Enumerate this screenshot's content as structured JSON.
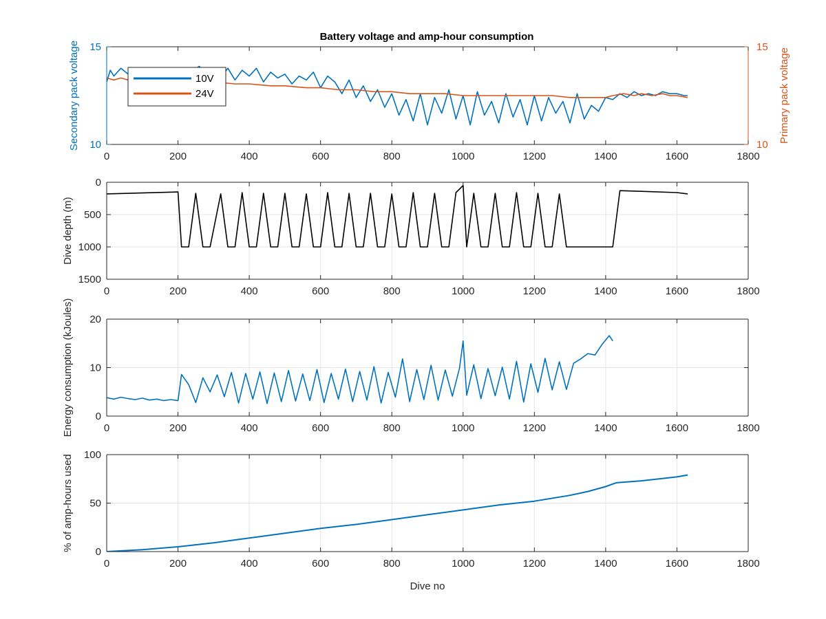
{
  "figure": {
    "title": "Battery voltage and amp-hour consumption",
    "xlabel": "Dive no"
  },
  "colors": {
    "blue": "#0072BD",
    "orange": "#D95319",
    "black": "#000000",
    "grid": "#E5E5E5",
    "axis": "#262626"
  },
  "chart_data": [
    {
      "type": "line",
      "id": "voltage",
      "title": "Battery voltage and amp-hour consumption",
      "xlabel": "",
      "ylabel": "Secondary pack voltage",
      "ylabel_right": "Primary pack voltage",
      "xlim": [
        0,
        1800
      ],
      "ylim": [
        10,
        15
      ],
      "ylim_right": [
        10,
        15
      ],
      "xticks": [
        0,
        200,
        400,
        600,
        800,
        1000,
        1200,
        1400,
        1600,
        1800
      ],
      "yticks": [
        10,
        15
      ],
      "yticks_right": [
        10,
        15
      ],
      "grid": false,
      "legend": "top-left",
      "series": [
        {
          "name": "10V",
          "color": "#0072BD",
          "axis": "left",
          "x": [
            0,
            10,
            20,
            40,
            60,
            80,
            100,
            120,
            140,
            160,
            180,
            200,
            220,
            240,
            260,
            280,
            300,
            320,
            340,
            360,
            380,
            400,
            420,
            440,
            460,
            480,
            500,
            520,
            540,
            560,
            580,
            600,
            620,
            640,
            660,
            680,
            700,
            720,
            740,
            760,
            780,
            800,
            820,
            840,
            860,
            880,
            900,
            920,
            940,
            960,
            980,
            1000,
            1020,
            1040,
            1060,
            1080,
            1100,
            1120,
            1140,
            1160,
            1180,
            1200,
            1220,
            1240,
            1260,
            1280,
            1300,
            1320,
            1340,
            1360,
            1380,
            1400,
            1420,
            1440,
            1460,
            1480,
            1500,
            1520,
            1540,
            1560,
            1580,
            1600,
            1620,
            1630
          ],
          "y": [
            13.2,
            13.8,
            13.5,
            13.9,
            13.6,
            13.8,
            13.7,
            13.9,
            13.6,
            13.8,
            13.7,
            13.9,
            13.6,
            13.8,
            14.0,
            13.5,
            13.7,
            13.4,
            13.9,
            13.3,
            13.8,
            13.5,
            13.9,
            13.2,
            13.7,
            13.4,
            13.6,
            13.1,
            13.5,
            13.3,
            13.7,
            12.9,
            13.5,
            13.2,
            12.6,
            13.3,
            12.4,
            13.0,
            12.2,
            12.8,
            11.9,
            12.6,
            11.5,
            12.3,
            11.2,
            12.6,
            11.0,
            12.4,
            11.6,
            12.8,
            11.3,
            12.5,
            11.0,
            12.7,
            11.5,
            12.2,
            11.1,
            12.6,
            11.4,
            12.3,
            11.0,
            12.5,
            11.2,
            12.4,
            11.6,
            12.2,
            11.1,
            12.6,
            11.3,
            12.0,
            11.7,
            12.4,
            12.3,
            12.6,
            12.4,
            12.7,
            12.5,
            12.6,
            12.5,
            12.7,
            12.6,
            12.6,
            12.5,
            12.5
          ]
        },
        {
          "name": "24V",
          "color": "#D95319",
          "axis": "right",
          "x": [
            0,
            20,
            40,
            60,
            80,
            100,
            140,
            200,
            260,
            300,
            360,
            400,
            460,
            500,
            560,
            600,
            650,
            700,
            750,
            800,
            850,
            900,
            950,
            1000,
            1050,
            1100,
            1150,
            1200,
            1250,
            1300,
            1350,
            1400,
            1420,
            1450,
            1480,
            1500,
            1530,
            1560,
            1580,
            1600,
            1630
          ],
          "y": [
            13.4,
            13.3,
            13.4,
            13.3,
            13.4,
            13.3,
            13.3,
            13.3,
            13.2,
            13.2,
            13.1,
            13.1,
            13.0,
            13.0,
            12.9,
            12.9,
            12.8,
            12.8,
            12.7,
            12.7,
            12.6,
            12.6,
            12.6,
            12.5,
            12.5,
            12.5,
            12.5,
            12.5,
            12.5,
            12.4,
            12.4,
            12.4,
            12.5,
            12.6,
            12.5,
            12.6,
            12.5,
            12.6,
            12.5,
            12.5,
            12.4
          ]
        }
      ]
    },
    {
      "type": "line",
      "id": "depth",
      "xlabel": "",
      "ylabel": "Dive depth (m)",
      "xlim": [
        0,
        1800
      ],
      "ylim": [
        0,
        1500
      ],
      "y_reversed": true,
      "xticks": [
        0,
        200,
        400,
        600,
        800,
        1000,
        1200,
        1400,
        1600,
        1800
      ],
      "yticks": [
        0,
        500,
        1000,
        1500
      ],
      "grid": true,
      "series": [
        {
          "color": "#000000",
          "x": [
            0,
            200,
            210,
            230,
            250,
            270,
            290,
            320,
            340,
            360,
            380,
            400,
            420,
            440,
            460,
            480,
            500,
            520,
            540,
            560,
            580,
            600,
            620,
            640,
            660,
            680,
            700,
            720,
            740,
            760,
            780,
            800,
            820,
            840,
            860,
            880,
            900,
            920,
            940,
            960,
            980,
            1000,
            1010,
            1030,
            1050,
            1070,
            1090,
            1110,
            1130,
            1150,
            1170,
            1190,
            1210,
            1230,
            1250,
            1270,
            1290,
            1300,
            1420,
            1440,
            1500,
            1600,
            1630
          ],
          "y": [
            180,
            150,
            1000,
            1000,
            170,
            1000,
            1000,
            180,
            1000,
            1000,
            160,
            1000,
            1000,
            170,
            1000,
            1000,
            170,
            1000,
            1000,
            180,
            1000,
            1000,
            160,
            1000,
            1000,
            170,
            1000,
            1000,
            170,
            1000,
            1000,
            180,
            1000,
            1000,
            160,
            1000,
            1000,
            170,
            1000,
            1000,
            160,
            50,
            1000,
            170,
            1000,
            1000,
            170,
            1000,
            1000,
            160,
            1000,
            1000,
            170,
            1000,
            1000,
            180,
            1000,
            1000,
            1000,
            130,
            140,
            160,
            180
          ]
        }
      ]
    },
    {
      "type": "line",
      "id": "energy",
      "xlabel": "",
      "ylabel": "Energy consumption (kJoules)",
      "xlim": [
        0,
        1800
      ],
      "ylim": [
        0,
        20
      ],
      "xticks": [
        0,
        200,
        400,
        600,
        800,
        1000,
        1200,
        1400,
        1600,
        1800
      ],
      "yticks": [
        0,
        10,
        20
      ],
      "grid": true,
      "series": [
        {
          "color": "#0072BD",
          "x": [
            0,
            20,
            40,
            60,
            80,
            100,
            120,
            140,
            160,
            180,
            200,
            210,
            230,
            250,
            270,
            290,
            310,
            330,
            350,
            370,
            390,
            410,
            430,
            450,
            470,
            490,
            510,
            530,
            550,
            570,
            590,
            610,
            630,
            650,
            670,
            690,
            710,
            730,
            750,
            770,
            790,
            810,
            830,
            850,
            870,
            890,
            910,
            930,
            950,
            970,
            990,
            1000,
            1010,
            1030,
            1050,
            1070,
            1090,
            1110,
            1130,
            1150,
            1170,
            1190,
            1210,
            1230,
            1250,
            1270,
            1290,
            1310,
            1330,
            1350,
            1370,
            1390,
            1410,
            1420
          ],
          "y": [
            3.8,
            3.5,
            3.9,
            3.6,
            3.4,
            3.7,
            3.3,
            3.5,
            3.2,
            3.4,
            3.2,
            8.6,
            6.5,
            2.8,
            7.9,
            5.0,
            8.5,
            4.0,
            9.0,
            2.7,
            8.8,
            3.5,
            9.1,
            2.6,
            8.9,
            3.0,
            9.4,
            3.1,
            8.7,
            3.2,
            9.6,
            2.8,
            8.8,
            3.5,
            9.7,
            3.0,
            9.2,
            3.3,
            10.2,
            2.7,
            9.0,
            3.9,
            11.8,
            3.0,
            9.6,
            3.4,
            10.5,
            3.3,
            9.5,
            4.1,
            9.9,
            15.5,
            4.3,
            10.6,
            3.6,
            9.8,
            4.2,
            10.1,
            3.5,
            11.3,
            2.9,
            10.8,
            4.9,
            11.9,
            5.4,
            11.2,
            5.5,
            10.9,
            11.8,
            12.9,
            12.6,
            14.8,
            16.6,
            15.5
          ]
        }
      ]
    },
    {
      "type": "line",
      "id": "amphours",
      "xlabel": "Dive no",
      "ylabel": "% of amp-hours used",
      "xlim": [
        0,
        1800
      ],
      "ylim": [
        0,
        100
      ],
      "xticks": [
        0,
        200,
        400,
        600,
        800,
        1000,
        1200,
        1400,
        1600,
        1800
      ],
      "yticks": [
        0,
        50,
        100
      ],
      "grid": true,
      "series": [
        {
          "color": "#0072BD",
          "x": [
            0,
            100,
            200,
            300,
            400,
            500,
            600,
            700,
            800,
            900,
            1000,
            1100,
            1200,
            1300,
            1350,
            1400,
            1430,
            1500,
            1600,
            1630
          ],
          "y": [
            0,
            2,
            5,
            9,
            14,
            19,
            24,
            28,
            33,
            38,
            43,
            48,
            52,
            58,
            62,
            67,
            71,
            73,
            77,
            79
          ]
        }
      ]
    }
  ]
}
